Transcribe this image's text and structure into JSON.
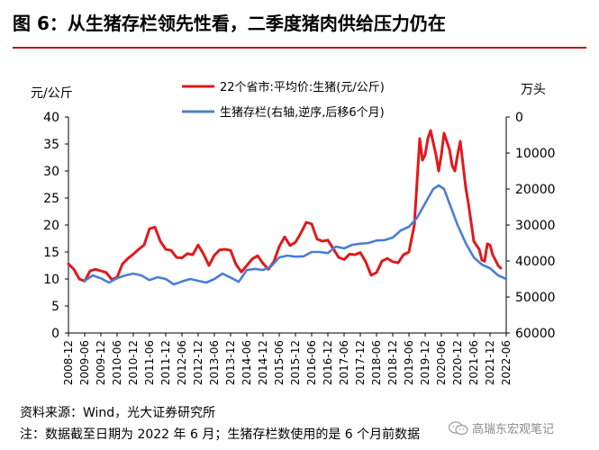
{
  "header": {
    "title": "图 6：从生猪存栏领先性看，二季度猪肉供给压力仍在"
  },
  "footer": {
    "source": "资料来源：Wind，光大证券研究所",
    "note": "注：数据截至日期为 2022 年 6 月；生猪存栏数使用的是 6 个月前数据",
    "watermark": "高瑞东宏观笔记"
  },
  "colors": {
    "price_line": "#e0191c",
    "inventory_line": "#4a7fd4",
    "title_rule": "#b51c1c"
  },
  "chart_data": {
    "type": "line",
    "y_left_label": "元/公斤",
    "y_right_label": "万头",
    "y_left_range": [
      0,
      40
    ],
    "y_left_ticks": [
      "0",
      "5",
      "10",
      "15",
      "20",
      "25",
      "30",
      "35",
      "40"
    ],
    "y_right_range": [
      0,
      60000
    ],
    "y_right_reversed": true,
    "y_right_ticks": [
      "0",
      "10000",
      "20000",
      "30000",
      "40000",
      "50000",
      "60000"
    ],
    "x_ticks": [
      "2008-12",
      "2009-06",
      "2009-12",
      "2010-06",
      "2010-12",
      "2011-06",
      "2011-12",
      "2012-06",
      "2012-12",
      "2013-06",
      "2013-12",
      "2014-06",
      "2014-12",
      "2015-06",
      "2015-12",
      "2016-06",
      "2016-12",
      "2017-06",
      "2017-12",
      "2018-06",
      "2018-12",
      "2019-06",
      "2019-12",
      "2020-06",
      "2020-12",
      "2021-06",
      "2021-12",
      "2022-06"
    ],
    "legend_position": "top-center",
    "grid": false,
    "series": [
      {
        "name": "22个省市:平均价:生猪(元/公斤)",
        "axis": "left",
        "color": "#e0191c",
        "points": [
          [
            "2008-12",
            12.8
          ],
          [
            "2009-02",
            11.8
          ],
          [
            "2009-04",
            10.0
          ],
          [
            "2009-06",
            9.6
          ],
          [
            "2009-08",
            11.5
          ],
          [
            "2009-10",
            11.8
          ],
          [
            "2009-12",
            11.5
          ],
          [
            "2010-02",
            11.2
          ],
          [
            "2010-04",
            9.9
          ],
          [
            "2010-06",
            10.3
          ],
          [
            "2010-08",
            12.8
          ],
          [
            "2010-10",
            13.8
          ],
          [
            "2010-12",
            14.6
          ],
          [
            "2011-02",
            15.5
          ],
          [
            "2011-04",
            16.3
          ],
          [
            "2011-06",
            19.3
          ],
          [
            "2011-08",
            19.6
          ],
          [
            "2011-10",
            17.0
          ],
          [
            "2011-12",
            15.5
          ],
          [
            "2012-02",
            15.3
          ],
          [
            "2012-04",
            14.0
          ],
          [
            "2012-06",
            13.9
          ],
          [
            "2012-08",
            14.7
          ],
          [
            "2012-10",
            14.5
          ],
          [
            "2012-12",
            16.3
          ],
          [
            "2013-02",
            14.6
          ],
          [
            "2013-04",
            12.5
          ],
          [
            "2013-06",
            14.4
          ],
          [
            "2013-08",
            15.4
          ],
          [
            "2013-10",
            15.5
          ],
          [
            "2013-12",
            15.3
          ],
          [
            "2014-02",
            12.7
          ],
          [
            "2014-04",
            11.3
          ],
          [
            "2014-06",
            12.5
          ],
          [
            "2014-08",
            13.7
          ],
          [
            "2014-10",
            14.3
          ],
          [
            "2014-12",
            12.9
          ],
          [
            "2015-02",
            11.8
          ],
          [
            "2015-04",
            13.2
          ],
          [
            "2015-06",
            16.0
          ],
          [
            "2015-08",
            17.8
          ],
          [
            "2015-10",
            16.2
          ],
          [
            "2015-12",
            16.8
          ],
          [
            "2016-02",
            18.5
          ],
          [
            "2016-04",
            20.5
          ],
          [
            "2016-06",
            20.2
          ],
          [
            "2016-08",
            17.4
          ],
          [
            "2016-10",
            17.0
          ],
          [
            "2016-12",
            17.2
          ],
          [
            "2017-02",
            15.6
          ],
          [
            "2017-04",
            14.0
          ],
          [
            "2017-06",
            13.6
          ],
          [
            "2017-08",
            14.6
          ],
          [
            "2017-10",
            14.5
          ],
          [
            "2017-12",
            14.9
          ],
          [
            "2018-02",
            13.2
          ],
          [
            "2018-04",
            10.7
          ],
          [
            "2018-06",
            11.2
          ],
          [
            "2018-08",
            13.3
          ],
          [
            "2018-10",
            13.8
          ],
          [
            "2018-12",
            13.2
          ],
          [
            "2019-02",
            13.0
          ],
          [
            "2019-04",
            14.5
          ],
          [
            "2019-06",
            15.0
          ],
          [
            "2019-08",
            20.0
          ],
          [
            "2019-10",
            36.0
          ],
          [
            "2019-11",
            32.0
          ],
          [
            "2019-12",
            33.0
          ],
          [
            "2020-01",
            36.0
          ],
          [
            "2020-02",
            37.5
          ],
          [
            "2020-04",
            33.0
          ],
          [
            "2020-05",
            30.0
          ],
          [
            "2020-06",
            33.0
          ],
          [
            "2020-07",
            37.0
          ],
          [
            "2020-09",
            34.0
          ],
          [
            "2020-10",
            31.0
          ],
          [
            "2020-11",
            30.0
          ],
          [
            "2020-12",
            33.0
          ],
          [
            "2021-01",
            35.5
          ],
          [
            "2021-03",
            27.0
          ],
          [
            "2021-04",
            24.0
          ],
          [
            "2021-06",
            17.0
          ],
          [
            "2021-08",
            15.5
          ],
          [
            "2021-09",
            13.5
          ],
          [
            "2021-10",
            13.3
          ],
          [
            "2021-11",
            16.5
          ],
          [
            "2021-12",
            16.3
          ],
          [
            "2022-01",
            14.5
          ],
          [
            "2022-03",
            12.5
          ],
          [
            "2022-04",
            12.0
          ]
        ]
      },
      {
        "name": "生猪存栏(右轴,逆序,后移6个月)",
        "axis": "right",
        "color": "#4a7fd4",
        "points": [
          [
            "2009-06",
            45500
          ],
          [
            "2009-09",
            44000
          ],
          [
            "2009-12",
            44800
          ],
          [
            "2010-03",
            46000
          ],
          [
            "2010-06",
            44800
          ],
          [
            "2010-09",
            44000
          ],
          [
            "2010-12",
            43500
          ],
          [
            "2011-03",
            44000
          ],
          [
            "2011-06",
            45300
          ],
          [
            "2011-09",
            44500
          ],
          [
            "2011-12",
            45000
          ],
          [
            "2012-03",
            46500
          ],
          [
            "2012-06",
            45700
          ],
          [
            "2012-09",
            45000
          ],
          [
            "2012-12",
            45500
          ],
          [
            "2013-03",
            46000
          ],
          [
            "2013-06",
            45000
          ],
          [
            "2013-09",
            43500
          ],
          [
            "2013-12",
            44600
          ],
          [
            "2014-03",
            45800
          ],
          [
            "2014-06",
            42500
          ],
          [
            "2014-09",
            42200
          ],
          [
            "2014-12",
            42500
          ],
          [
            "2015-03",
            41500
          ],
          [
            "2015-06",
            39000
          ],
          [
            "2015-09",
            38500
          ],
          [
            "2015-12",
            38800
          ],
          [
            "2016-03",
            38700
          ],
          [
            "2016-06",
            37500
          ],
          [
            "2016-09",
            37500
          ],
          [
            "2016-12",
            37800
          ],
          [
            "2017-03",
            36000
          ],
          [
            "2017-06",
            36500
          ],
          [
            "2017-09",
            35500
          ],
          [
            "2017-12",
            35200
          ],
          [
            "2018-03",
            35000
          ],
          [
            "2018-06",
            34300
          ],
          [
            "2018-09",
            34200
          ],
          [
            "2018-12",
            33500
          ],
          [
            "2019-03",
            31500
          ],
          [
            "2019-06",
            30500
          ],
          [
            "2019-09",
            28000
          ],
          [
            "2019-12",
            24000
          ],
          [
            "2020-03",
            20000
          ],
          [
            "2020-05",
            19000
          ],
          [
            "2020-07",
            20000
          ],
          [
            "2020-09",
            24000
          ],
          [
            "2020-12",
            30000
          ],
          [
            "2021-03",
            35000
          ],
          [
            "2021-06",
            39000
          ],
          [
            "2021-09",
            41000
          ],
          [
            "2021-12",
            42000
          ],
          [
            "2022-03",
            44000
          ],
          [
            "2022-06",
            45000
          ]
        ]
      }
    ]
  }
}
